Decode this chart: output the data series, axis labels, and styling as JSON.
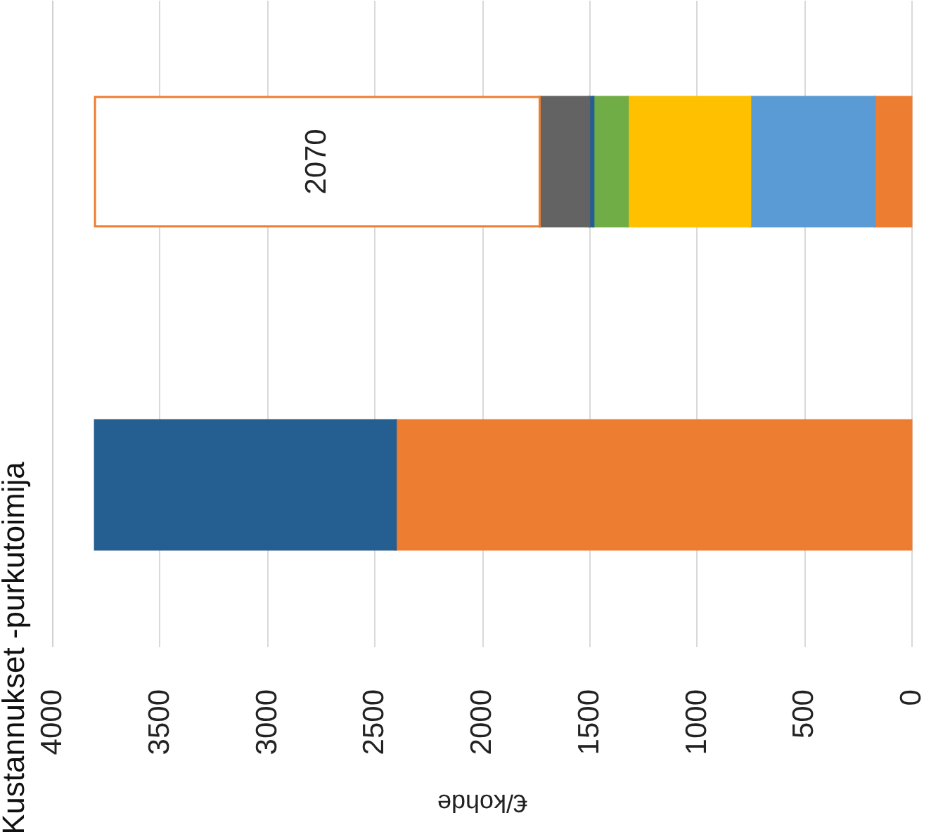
{
  "chart_data": {
    "type": "bar",
    "orientation": "horizontal",
    "title": "Kustannukset -purkutoimija",
    "xlabel": "€/kohde",
    "categories": [
      null,
      null
    ],
    "stacked": true,
    "series": [
      {
        "color": "#ed7d31",
        "values": [
          170,
          2400
        ]
      },
      {
        "color": "#5b9bd5",
        "values": [
          580,
          null
        ]
      },
      {
        "color": "#ffc000",
        "values": [
          570,
          null
        ]
      },
      {
        "color": "#70ad47",
        "values": [
          160,
          null
        ]
      },
      {
        "color": "#255e91",
        "values": [
          20,
          1400
        ]
      },
      {
        "color": "#636363",
        "values": [
          230,
          null
        ]
      },
      {
        "color": "#ffffff",
        "values": [
          2070,
          null
        ],
        "value_labels": [
          "2070",
          null
        ]
      }
    ],
    "xlim": [
      4000,
      0
    ],
    "xticks": [
      4000,
      3500,
      3000,
      2500,
      2000,
      1500,
      1000,
      500,
      0
    ],
    "grid": "x",
    "tick_labels": "x"
  }
}
